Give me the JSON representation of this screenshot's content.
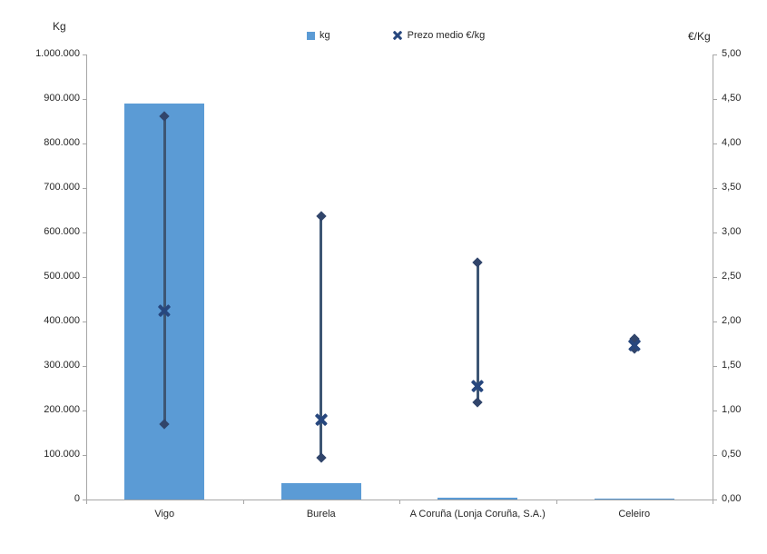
{
  "chart": {
    "left_axis": {
      "title": "Kg",
      "tick_labels_top_to_bottom": [
        "1.000.000",
        "900.000",
        "800.000",
        "700.000",
        "600.000",
        "500.000",
        "400.000",
        "300.000",
        "200.000",
        "100.000",
        "0"
      ]
    },
    "right_axis": {
      "title": "€/Kg",
      "tick_labels_top_to_bottom": [
        "5,00",
        "4,50",
        "4,00",
        "3,50",
        "3,00",
        "2,50",
        "2,00",
        "1,50",
        "1,00",
        "0,50",
        "0,00"
      ]
    },
    "legend": {
      "kg_label": "kg",
      "prezo_label": "Prezo medio €/kg"
    },
    "colors": {
      "bar": "#5B9BD5",
      "hilo_line": "#3D5674",
      "diamond": "#31456B",
      "x_marker": "#27477E",
      "axis": "#a6a6a6",
      "text": "#262626"
    }
  },
  "chart_data": {
    "type": "bar",
    "subtype": "combo-bar-with-high-low-mean",
    "title": "",
    "xlabel": "",
    "ylabel_left": "Kg",
    "ylabel_right": "€/Kg",
    "ylim_left": [
      0,
      1000000
    ],
    "ylim_right": [
      0,
      5
    ],
    "ytick_step_left": 100000,
    "ytick_step_right": 0.5,
    "grid": false,
    "legend_position": "top",
    "categories": [
      "Vigo",
      "Burela",
      "A Coruña (Lonja Coruña, S.A.)",
      "Celeiro"
    ],
    "series": [
      {
        "name": "kg",
        "type": "bar",
        "axis": "left",
        "values": [
          890000,
          37000,
          3500,
          3000
        ]
      },
      {
        "name": "Prezo medio €/kg",
        "type": "high-low-mean",
        "axis": "right",
        "high": [
          4.31,
          3.18,
          2.66,
          1.81
        ],
        "low": [
          0.85,
          0.47,
          1.09,
          1.69
        ],
        "mean": [
          2.12,
          0.9,
          1.28,
          1.73
        ]
      }
    ]
  }
}
